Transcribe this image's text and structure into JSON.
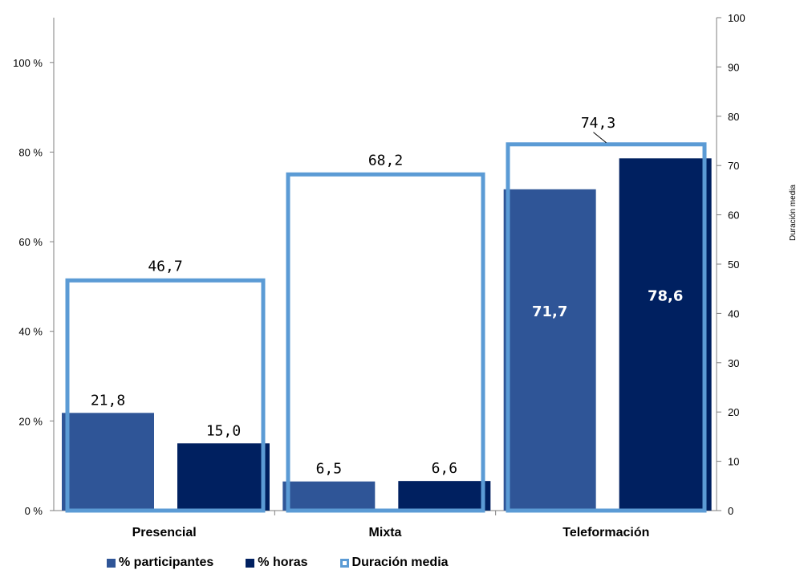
{
  "chart_data": {
    "type": "bar",
    "categories": [
      "Presencial",
      "Mixta",
      "Teleformación"
    ],
    "series": [
      {
        "name": "% participantes",
        "axis": "left",
        "style": "bar",
        "color": "#2F5597",
        "values": [
          21.8,
          6.5,
          71.7
        ],
        "labels": [
          "21,8",
          "6,5",
          "71,7"
        ]
      },
      {
        "name": "% horas",
        "axis": "left",
        "style": "bar",
        "color": "#002060",
        "values": [
          15.0,
          6.6,
          78.6
        ],
        "labels": [
          "15,0",
          "6,6",
          "78,6"
        ]
      },
      {
        "name": "Duración media",
        "axis": "right",
        "style": "outline-box",
        "color": "#5B9BD5",
        "values": [
          46.7,
          68.2,
          74.3
        ],
        "labels": [
          "46,7",
          "68,2",
          "74,3"
        ]
      }
    ],
    "y_left": {
      "ylim": [
        0,
        110
      ],
      "ticks": [
        0,
        20,
        40,
        60,
        80,
        100
      ],
      "tick_labels": [
        "0 %",
        "20 %",
        "40 %",
        "60 %",
        "80 %",
        "100 %"
      ]
    },
    "y_right": {
      "ylim": [
        0,
        100
      ],
      "ticks": [
        0,
        10,
        20,
        30,
        40,
        50,
        60,
        70,
        80,
        90,
        100
      ],
      "tick_labels": [
        "0",
        "10",
        "20",
        "30",
        "40",
        "50",
        "60",
        "70",
        "80",
        "90",
        "100"
      ],
      "label": "Duración media"
    },
    "legend": {
      "position": "bottom",
      "items": [
        "% participantes",
        "% horas",
        "Duración media"
      ]
    },
    "grid": false
  }
}
